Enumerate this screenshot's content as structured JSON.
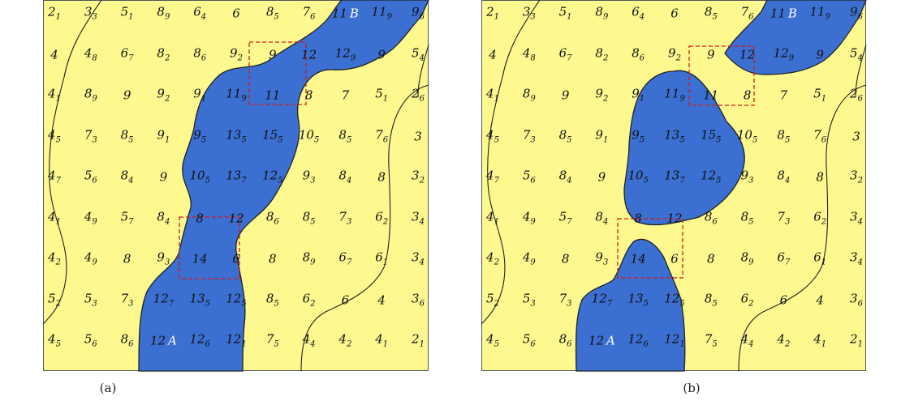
{
  "colors": {
    "background": "#fdf98f",
    "blob": "#3b6fd1",
    "contour": "#222222",
    "highlight": "#d21a1a",
    "endpoint_label": "#ffffff"
  },
  "panels": [
    {
      "caption": "(a)",
      "grid": [
        [
          [
            "2",
            "1"
          ],
          [
            "3",
            "3"
          ],
          [
            "5",
            "1"
          ],
          [
            "8",
            "9"
          ],
          [
            "6",
            "4"
          ],
          [
            "6",
            ""
          ],
          [
            "8",
            "5"
          ],
          [
            "7",
            "6"
          ],
          [
            "11",
            "B"
          ],
          [
            "11",
            "9"
          ],
          [
            "9",
            "6"
          ]
        ],
        [
          [
            "4",
            ""
          ],
          [
            "4",
            "8"
          ],
          [
            "6",
            "7"
          ],
          [
            "8",
            "2"
          ],
          [
            "8",
            "6"
          ],
          [
            "9",
            "2"
          ],
          [
            "9",
            ""
          ],
          [
            "12",
            ""
          ],
          [
            "12",
            "9"
          ],
          [
            "9",
            ""
          ],
          [
            "5",
            "4"
          ]
        ],
        [
          [
            "4",
            "1"
          ],
          [
            "8",
            "9"
          ],
          [
            "9",
            ""
          ],
          [
            "9",
            "2"
          ],
          [
            "9",
            "1"
          ],
          [
            "11",
            "9"
          ],
          [
            "11",
            ""
          ],
          [
            "8",
            ""
          ],
          [
            "7",
            ""
          ],
          [
            "5",
            "1"
          ],
          [
            "2",
            "6"
          ]
        ],
        [
          [
            "4",
            "5"
          ],
          [
            "7",
            "3"
          ],
          [
            "8",
            "5"
          ],
          [
            "9",
            "1"
          ],
          [
            "9",
            "5"
          ],
          [
            "13",
            "5"
          ],
          [
            "15",
            "5"
          ],
          [
            "10",
            "5"
          ],
          [
            "8",
            "5"
          ],
          [
            "7",
            "6"
          ],
          [
            "3",
            ""
          ]
        ],
        [
          [
            "4",
            "7"
          ],
          [
            "5",
            "6"
          ],
          [
            "8",
            "4"
          ],
          [
            "9",
            ""
          ],
          [
            "10",
            "5"
          ],
          [
            "13",
            "7"
          ],
          [
            "12",
            "5"
          ],
          [
            "9",
            "3"
          ],
          [
            "8",
            "4"
          ],
          [
            "8",
            ""
          ],
          [
            "3",
            "2"
          ]
        ],
        [
          [
            "4",
            "1"
          ],
          [
            "4",
            "9"
          ],
          [
            "5",
            "7"
          ],
          [
            "8",
            "4"
          ],
          [
            "8",
            ""
          ],
          [
            "12",
            ""
          ],
          [
            "8",
            "6"
          ],
          [
            "8",
            "5"
          ],
          [
            "7",
            "3"
          ],
          [
            "6",
            "2"
          ],
          [
            "3",
            "4"
          ]
        ],
        [
          [
            "4",
            "2"
          ],
          [
            "4",
            "9"
          ],
          [
            "8",
            ""
          ],
          [
            "9",
            "3"
          ],
          [
            "14",
            ""
          ],
          [
            "6",
            ""
          ],
          [
            "8",
            ""
          ],
          [
            "8",
            "9"
          ],
          [
            "6",
            "7"
          ],
          [
            "6",
            "1"
          ],
          [
            "3",
            "4"
          ]
        ],
        [
          [
            "5",
            "2"
          ],
          [
            "5",
            "3"
          ],
          [
            "7",
            "3"
          ],
          [
            "12",
            "7"
          ],
          [
            "13",
            "5"
          ],
          [
            "12",
            "5"
          ],
          [
            "8",
            "5"
          ],
          [
            "6",
            "2"
          ],
          [
            "6",
            ""
          ],
          [
            "4",
            ""
          ],
          [
            "3",
            "6"
          ]
        ],
        [
          [
            "4",
            "5"
          ],
          [
            "5",
            "6"
          ],
          [
            "8",
            "6"
          ],
          [
            "12",
            "A"
          ],
          [
            "12",
            "6"
          ],
          [
            "12",
            "1"
          ],
          [
            "7",
            "5"
          ],
          [
            "4",
            "4"
          ],
          [
            "4",
            "2"
          ],
          [
            "4",
            "1"
          ],
          [
            "2",
            "1"
          ]
        ]
      ]
    },
    {
      "caption": "(b)",
      "grid": [
        [
          [
            "2",
            "1"
          ],
          [
            "3",
            "3"
          ],
          [
            "5",
            "1"
          ],
          [
            "8",
            "9"
          ],
          [
            "6",
            "4"
          ],
          [
            "6",
            ""
          ],
          [
            "8",
            "5"
          ],
          [
            "7",
            "6"
          ],
          [
            "11",
            "B"
          ],
          [
            "11",
            "9"
          ],
          [
            "9",
            "6"
          ]
        ],
        [
          [
            "4",
            ""
          ],
          [
            "4",
            "8"
          ],
          [
            "6",
            "7"
          ],
          [
            "8",
            "2"
          ],
          [
            "8",
            "6"
          ],
          [
            "9",
            "2"
          ],
          [
            "9",
            ""
          ],
          [
            "12",
            ""
          ],
          [
            "12",
            "9"
          ],
          [
            "9",
            ""
          ],
          [
            "5",
            "4"
          ]
        ],
        [
          [
            "4",
            "1"
          ],
          [
            "8",
            "9"
          ],
          [
            "9",
            ""
          ],
          [
            "9",
            "2"
          ],
          [
            "9",
            "1"
          ],
          [
            "11",
            "9"
          ],
          [
            "11",
            ""
          ],
          [
            "8",
            ""
          ],
          [
            "7",
            ""
          ],
          [
            "5",
            "1"
          ],
          [
            "2",
            "6"
          ]
        ],
        [
          [
            "4",
            "5"
          ],
          [
            "7",
            "3"
          ],
          [
            "8",
            "5"
          ],
          [
            "9",
            "1"
          ],
          [
            "9",
            "5"
          ],
          [
            "13",
            "5"
          ],
          [
            "15",
            "5"
          ],
          [
            "10",
            "5"
          ],
          [
            "8",
            "5"
          ],
          [
            "7",
            "6"
          ],
          [
            "3",
            ""
          ]
        ],
        [
          [
            "4",
            "7"
          ],
          [
            "5",
            "6"
          ],
          [
            "8",
            "4"
          ],
          [
            "9",
            ""
          ],
          [
            "10",
            "5"
          ],
          [
            "13",
            "7"
          ],
          [
            "12",
            "5"
          ],
          [
            "9",
            "3"
          ],
          [
            "8",
            "4"
          ],
          [
            "8",
            ""
          ],
          [
            "3",
            "2"
          ]
        ],
        [
          [
            "4",
            "1"
          ],
          [
            "4",
            "9"
          ],
          [
            "5",
            "7"
          ],
          [
            "8",
            "4"
          ],
          [
            "8",
            ""
          ],
          [
            "12",
            ""
          ],
          [
            "8",
            "6"
          ],
          [
            "8",
            "5"
          ],
          [
            "7",
            "3"
          ],
          [
            "6",
            "2"
          ],
          [
            "3",
            "4"
          ]
        ],
        [
          [
            "4",
            "2"
          ],
          [
            "4",
            "9"
          ],
          [
            "8",
            ""
          ],
          [
            "9",
            "3"
          ],
          [
            "14",
            ""
          ],
          [
            "6",
            ""
          ],
          [
            "8",
            ""
          ],
          [
            "8",
            "9"
          ],
          [
            "6",
            "7"
          ],
          [
            "6",
            "1"
          ],
          [
            "3",
            "4"
          ]
        ],
        [
          [
            "5",
            "2"
          ],
          [
            "5",
            "3"
          ],
          [
            "7",
            "3"
          ],
          [
            "12",
            "7"
          ],
          [
            "13",
            "5"
          ],
          [
            "12",
            "5"
          ],
          [
            "8",
            "5"
          ],
          [
            "6",
            "2"
          ],
          [
            "6",
            ""
          ],
          [
            "4",
            ""
          ],
          [
            "3",
            "6"
          ]
        ],
        [
          [
            "4",
            "5"
          ],
          [
            "5",
            "6"
          ],
          [
            "8",
            "6"
          ],
          [
            "12",
            "A"
          ],
          [
            "12",
            "6"
          ],
          [
            "12",
            "1"
          ],
          [
            "7",
            "5"
          ],
          [
            "4",
            "4"
          ],
          [
            "4",
            "2"
          ],
          [
            "4",
            "1"
          ],
          [
            "2",
            "1"
          ]
        ]
      ]
    }
  ]
}
